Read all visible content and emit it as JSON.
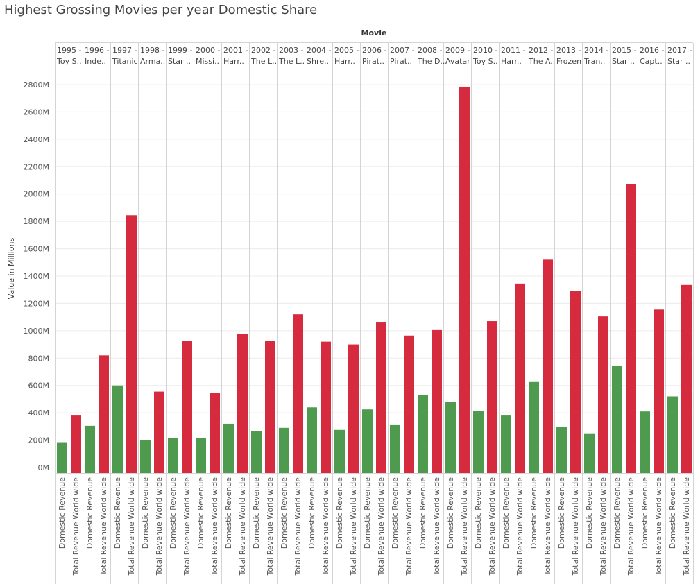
{
  "title": "Highest Grossing Movies per year Domestic Share",
  "chart_data": {
    "type": "bar",
    "title": "Highest Grossing Movies per year Domestic Share",
    "header_label": "Movie",
    "ylabel": "Value in Millions",
    "ylim": [
      0,
      2900
    ],
    "yticks": [
      0,
      200,
      400,
      600,
      800,
      1000,
      1200,
      1400,
      1600,
      1800,
      2000,
      2200,
      2400,
      2600,
      2800
    ],
    "ytick_labels": [
      "0M",
      "200M",
      "400M",
      "600M",
      "800M",
      "1000M",
      "1200M",
      "1400M",
      "1600M",
      "1800M",
      "2000M",
      "2200M",
      "2400M",
      "2600M",
      "2800M"
    ],
    "grid": true,
    "measures": [
      "Domestic Revenue",
      "Total Revenue World wide"
    ],
    "colors": {
      "Domestic Revenue": "#4e9a4e",
      "Total Revenue World wide": "#d62a3e"
    },
    "groups": [
      {
        "year": "1995 -",
        "movie": "Toy S..",
        "domestic": 185,
        "worldwide": 380
      },
      {
        "year": "1996 -",
        "movie": "Inde..",
        "domestic": 305,
        "worldwide": 820
      },
      {
        "year": "1997 -",
        "movie": "Titanic",
        "domestic": 600,
        "worldwide": 1845
      },
      {
        "year": "1998 -",
        "movie": "Arma..",
        "domestic": 200,
        "worldwide": 555
      },
      {
        "year": "1999 -",
        "movie": "Star ..",
        "domestic": 215,
        "worldwide": 925
      },
      {
        "year": "2000 -",
        "movie": "Missi..",
        "domestic": 215,
        "worldwide": 545
      },
      {
        "year": "2001 -",
        "movie": "Harr..",
        "domestic": 320,
        "worldwide": 975
      },
      {
        "year": "2002 -",
        "movie": "The L..",
        "domestic": 265,
        "worldwide": 925
      },
      {
        "year": "2003 -",
        "movie": "The L..",
        "domestic": 290,
        "worldwide": 1120
      },
      {
        "year": "2004 -",
        "movie": "Shre..",
        "domestic": 440,
        "worldwide": 920
      },
      {
        "year": "2005 -",
        "movie": "Harr..",
        "domestic": 275,
        "worldwide": 900
      },
      {
        "year": "2006 -",
        "movie": "Pirat..",
        "domestic": 425,
        "worldwide": 1065
      },
      {
        "year": "2007 -",
        "movie": "Pirat..",
        "domestic": 310,
        "worldwide": 965
      },
      {
        "year": "2008 -",
        "movie": "The D..",
        "domestic": 530,
        "worldwide": 1005
      },
      {
        "year": "2009 -",
        "movie": "Avatar",
        "domestic": 480,
        "worldwide": 2785
      },
      {
        "year": "2010 -",
        "movie": "Toy S..",
        "domestic": 415,
        "worldwide": 1070
      },
      {
        "year": "2011 -",
        "movie": "Harr..",
        "domestic": 380,
        "worldwide": 1345
      },
      {
        "year": "2012 -",
        "movie": "The A..",
        "domestic": 625,
        "worldwide": 1520
      },
      {
        "year": "2013 -",
        "movie": "Frozen",
        "domestic": 295,
        "worldwide": 1290
      },
      {
        "year": "2014 -",
        "movie": "Tran..",
        "domestic": 245,
        "worldwide": 1105
      },
      {
        "year": "2015 -",
        "movie": "Star ..",
        "domestic": 745,
        "worldwide": 2070
      },
      {
        "year": "2016 -",
        "movie": "Capt..",
        "domestic": 410,
        "worldwide": 1155
      },
      {
        "year": "2017 -",
        "movie": "Star ..",
        "domestic": 520,
        "worldwide": 1335
      }
    ]
  }
}
